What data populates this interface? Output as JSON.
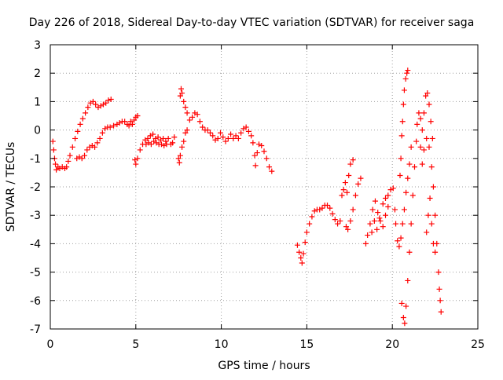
{
  "chart_data": {
    "type": "scatter",
    "title": "Day 226 of 2018, Sidereal Day-to-day VTEC variation (SDTVAR) for receiver saga",
    "xlabel": "GPS time / hours",
    "ylabel": "SDTVAR / TECUs",
    "xlim": [
      0,
      25
    ],
    "ylim": [
      -7,
      3
    ],
    "xticks": [
      0,
      5,
      10,
      15,
      20,
      25
    ],
    "yticks": [
      -7,
      -6,
      -5,
      -4,
      -3,
      -2,
      -1,
      0,
      1,
      2,
      3
    ],
    "xtick_labels": [
      "0",
      "5",
      "10",
      "15",
      "20",
      "25"
    ],
    "ytick_labels": [
      "-7",
      "-6",
      "-5",
      "-4",
      "-3",
      "-2",
      "-1",
      "0",
      "1",
      "2",
      "3"
    ],
    "grid": true,
    "marker": "+",
    "colors": {
      "series": "#ff0000",
      "grid": "#a0a0a0",
      "axis": "#000000"
    },
    "series": [
      {
        "values": [
          [
            0.15,
            -0.4
          ],
          [
            0.2,
            -0.7
          ],
          [
            0.25,
            -1.0
          ],
          [
            0.3,
            -1.2
          ],
          [
            0.35,
            -1.4
          ],
          [
            0.45,
            -1.3
          ],
          [
            0.55,
            -1.35
          ],
          [
            0.7,
            -1.3
          ],
          [
            0.85,
            -1.35
          ],
          [
            0.95,
            -1.3
          ],
          [
            1.05,
            -1.1
          ],
          [
            1.15,
            -0.9
          ],
          [
            1.3,
            -0.6
          ],
          [
            1.45,
            -0.3
          ],
          [
            1.6,
            -0.05
          ],
          [
            1.75,
            0.2
          ],
          [
            1.9,
            0.4
          ],
          [
            2.05,
            0.6
          ],
          [
            2.2,
            0.8
          ],
          [
            2.35,
            0.95
          ],
          [
            2.5,
            1.0
          ],
          [
            2.65,
            0.9
          ],
          [
            2.8,
            0.8
          ],
          [
            2.95,
            0.85
          ],
          [
            3.1,
            0.9
          ],
          [
            3.25,
            0.95
          ],
          [
            3.4,
            1.05
          ],
          [
            3.55,
            1.08
          ],
          [
            1.55,
            -1.0
          ],
          [
            1.7,
            -0.95
          ],
          [
            1.85,
            -1.0
          ],
          [
            2.0,
            -0.9
          ],
          [
            2.15,
            -0.7
          ],
          [
            2.3,
            -0.6
          ],
          [
            2.45,
            -0.55
          ],
          [
            2.6,
            -0.6
          ],
          [
            2.75,
            -0.45
          ],
          [
            2.9,
            -0.3
          ],
          [
            3.05,
            -0.1
          ],
          [
            3.2,
            0.05
          ],
          [
            3.35,
            0.1
          ],
          [
            3.5,
            0.1
          ],
          [
            3.7,
            0.15
          ],
          [
            3.9,
            0.2
          ],
          [
            4.05,
            0.25
          ],
          [
            4.2,
            0.3
          ],
          [
            4.35,
            0.3
          ],
          [
            4.5,
            0.2
          ],
          [
            4.6,
            0.15
          ],
          [
            4.7,
            0.3
          ],
          [
            4.8,
            0.2
          ],
          [
            4.9,
            0.35
          ],
          [
            5.0,
            0.45
          ],
          [
            5.1,
            0.5
          ],
          [
            4.95,
            -1.05
          ],
          [
            5.0,
            -1.2
          ],
          [
            5.1,
            -1.0
          ],
          [
            5.25,
            -0.7
          ],
          [
            5.4,
            -0.5
          ],
          [
            5.55,
            -0.35
          ],
          [
            5.7,
            -0.3
          ],
          [
            5.85,
            -0.2
          ],
          [
            6.0,
            -0.15
          ],
          [
            6.15,
            -0.3
          ],
          [
            6.3,
            -0.25
          ],
          [
            6.45,
            -0.35
          ],
          [
            6.6,
            -0.3
          ],
          [
            6.75,
            -0.4
          ],
          [
            6.9,
            -0.3
          ],
          [
            7.05,
            -0.5
          ],
          [
            7.15,
            -0.45
          ],
          [
            7.25,
            -0.25
          ],
          [
            5.6,
            -0.5
          ],
          [
            5.75,
            -0.45
          ],
          [
            5.9,
            -0.5
          ],
          [
            6.05,
            -0.4
          ],
          [
            6.2,
            -0.45
          ],
          [
            6.35,
            -0.5
          ],
          [
            6.5,
            -0.5
          ],
          [
            6.65,
            -0.55
          ],
          [
            6.8,
            -0.5
          ],
          [
            7.5,
            -1.0
          ],
          [
            7.55,
            -1.15
          ],
          [
            7.6,
            -0.9
          ],
          [
            7.7,
            -0.6
          ],
          [
            7.8,
            -0.4
          ],
          [
            7.9,
            -0.1
          ],
          [
            8.0,
            0.0
          ],
          [
            7.6,
            1.2
          ],
          [
            7.65,
            1.45
          ],
          [
            7.7,
            1.3
          ],
          [
            7.8,
            1.0
          ],
          [
            7.9,
            0.8
          ],
          [
            8.0,
            0.6
          ],
          [
            8.15,
            0.35
          ],
          [
            8.3,
            0.45
          ],
          [
            8.45,
            0.6
          ],
          [
            8.6,
            0.55
          ],
          [
            8.75,
            0.3
          ],
          [
            8.9,
            0.1
          ],
          [
            9.05,
            0.0
          ],
          [
            9.2,
            0.0
          ],
          [
            9.35,
            -0.1
          ],
          [
            9.5,
            -0.2
          ],
          [
            9.65,
            -0.35
          ],
          [
            9.8,
            -0.3
          ],
          [
            9.95,
            -0.1
          ],
          [
            10.1,
            -0.25
          ],
          [
            10.25,
            -0.4
          ],
          [
            10.4,
            -0.3
          ],
          [
            10.55,
            -0.15
          ],
          [
            10.7,
            -0.3
          ],
          [
            10.85,
            -0.2
          ],
          [
            11.0,
            -0.3
          ],
          [
            11.15,
            -0.1
          ],
          [
            11.3,
            0.05
          ],
          [
            11.45,
            0.1
          ],
          [
            11.6,
            -0.05
          ],
          [
            11.75,
            -0.2
          ],
          [
            11.85,
            -0.45
          ],
          [
            11.95,
            -0.9
          ],
          [
            12.0,
            -1.25
          ],
          [
            12.1,
            -0.8
          ],
          [
            12.2,
            -0.5
          ],
          [
            12.35,
            -0.55
          ],
          [
            12.5,
            -0.75
          ],
          [
            12.65,
            -1.0
          ],
          [
            12.8,
            -1.3
          ],
          [
            12.95,
            -1.45
          ],
          [
            14.45,
            -4.05
          ],
          [
            14.55,
            -4.3
          ],
          [
            14.65,
            -4.5
          ],
          [
            14.72,
            -4.68
          ],
          [
            14.8,
            -4.35
          ],
          [
            14.9,
            -3.95
          ],
          [
            15.0,
            -3.6
          ],
          [
            15.15,
            -3.3
          ],
          [
            15.3,
            -3.05
          ],
          [
            15.45,
            -2.85
          ],
          [
            15.6,
            -2.8
          ],
          [
            15.75,
            -2.8
          ],
          [
            15.9,
            -2.75
          ],
          [
            16.05,
            -2.65
          ],
          [
            16.2,
            -2.65
          ],
          [
            16.35,
            -2.75
          ],
          [
            16.5,
            -2.95
          ],
          [
            16.65,
            -3.15
          ],
          [
            16.8,
            -3.3
          ],
          [
            16.95,
            -3.2
          ],
          [
            17.05,
            -2.3
          ],
          [
            17.15,
            -2.1
          ],
          [
            17.25,
            -1.85
          ],
          [
            17.35,
            -2.2
          ],
          [
            17.45,
            -1.6
          ],
          [
            17.55,
            -1.2
          ],
          [
            17.7,
            -1.05
          ],
          [
            17.3,
            -3.4
          ],
          [
            17.4,
            -3.5
          ],
          [
            17.55,
            -3.2
          ],
          [
            17.7,
            -2.8
          ],
          [
            17.85,
            -2.3
          ],
          [
            18.0,
            -1.9
          ],
          [
            18.15,
            -1.7
          ],
          [
            18.45,
            -4.0
          ],
          [
            18.55,
            -3.7
          ],
          [
            18.7,
            -3.3
          ],
          [
            18.85,
            -2.8
          ],
          [
            19.0,
            -2.5
          ],
          [
            19.15,
            -2.9
          ],
          [
            19.3,
            -3.2
          ],
          [
            19.45,
            -3.4
          ],
          [
            19.6,
            -3.0
          ],
          [
            19.75,
            -2.7
          ],
          [
            18.8,
            -3.6
          ],
          [
            18.95,
            -3.2
          ],
          [
            19.1,
            -3.5
          ],
          [
            19.25,
            -3.1
          ],
          [
            19.45,
            -2.6
          ],
          [
            19.6,
            -2.4
          ],
          [
            19.75,
            -2.3
          ],
          [
            19.9,
            -2.1
          ],
          [
            20.05,
            -2.05
          ],
          [
            20.15,
            -2.8
          ],
          [
            20.2,
            -3.3
          ],
          [
            20.3,
            -3.9
          ],
          [
            20.4,
            -4.1
          ],
          [
            20.5,
            -3.8
          ],
          [
            20.6,
            -3.3
          ],
          [
            20.7,
            -2.8
          ],
          [
            20.8,
            -2.2
          ],
          [
            20.9,
            -1.7
          ],
          [
            21.0,
            -1.2
          ],
          [
            21.1,
            -0.6
          ],
          [
            20.45,
            -1.6
          ],
          [
            20.5,
            -1.0
          ],
          [
            20.55,
            -0.2
          ],
          [
            20.6,
            0.3
          ],
          [
            20.65,
            0.9
          ],
          [
            20.7,
            1.4
          ],
          [
            20.78,
            1.8
          ],
          [
            20.85,
            2.0
          ],
          [
            20.9,
            2.1
          ],
          [
            20.55,
            -6.1
          ],
          [
            20.65,
            -6.6
          ],
          [
            20.72,
            -6.8
          ],
          [
            20.8,
            -6.2
          ],
          [
            20.9,
            -5.3
          ],
          [
            21.0,
            -4.3
          ],
          [
            21.1,
            -3.3
          ],
          [
            21.2,
            -2.3
          ],
          [
            21.3,
            -1.3
          ],
          [
            21.4,
            -0.4
          ],
          [
            21.45,
            0.2
          ],
          [
            21.55,
            0.6
          ],
          [
            21.65,
            0.4
          ],
          [
            21.75,
            0.0
          ],
          [
            21.85,
            0.6
          ],
          [
            21.95,
            1.2
          ],
          [
            22.05,
            1.3
          ],
          [
            22.15,
            0.9
          ],
          [
            22.25,
            0.3
          ],
          [
            22.35,
            -0.3
          ],
          [
            21.65,
            -0.6
          ],
          [
            21.75,
            -1.2
          ],
          [
            21.85,
            -0.7
          ],
          [
            22.0,
            -0.3
          ],
          [
            22.15,
            -0.6
          ],
          [
            22.3,
            -1.3
          ],
          [
            22.4,
            -2.0
          ],
          [
            22.5,
            -3.0
          ],
          [
            22.6,
            -4.0
          ],
          [
            22.7,
            -5.0
          ],
          [
            22.75,
            -5.6
          ],
          [
            22.8,
            -6.0
          ],
          [
            22.85,
            -6.4
          ],
          [
            22.0,
            -3.6
          ],
          [
            22.1,
            -3.0
          ],
          [
            22.2,
            -2.4
          ],
          [
            22.3,
            -3.3
          ],
          [
            22.4,
            -4.0
          ],
          [
            22.5,
            -4.3
          ]
        ]
      }
    ]
  }
}
